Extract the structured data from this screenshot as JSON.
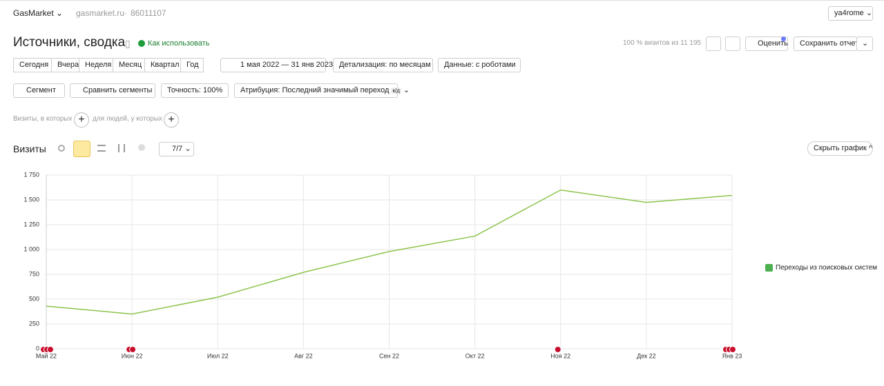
{
  "header": {
    "site": "GasMarket",
    "domain": "gasmarket.ru",
    "counter": "86011107",
    "user": "ya4rome"
  },
  "title": "Источники, сводка",
  "help": "Как использовать",
  "visits_info": "100 % визитов из 11 195",
  "rate": "Оценить",
  "save": "Сохранить отчет",
  "periods": [
    "Сегодня",
    "Вчера",
    "Неделя",
    "Месяц",
    "Квартал",
    "Год"
  ],
  "date_range": "1 мая 2022 — 31 янв 2023",
  "detail": "Детализация: по месяцам",
  "data_mode": "Данные: с роботами",
  "segment": "Сегмент",
  "compare": "Сравнить сегменты",
  "accuracy": "Точность: 100%",
  "attribution": "Атрибуция: Последний значимый переход",
  "attribution_badge": "к/д",
  "filter_visits": "Визиты, в которых",
  "filter_people": "для людей, у которых",
  "metric": "Визиты",
  "annotations_count": "7/7",
  "hide_chart": "Скрыть график",
  "chart_data": {
    "type": "line",
    "categories": [
      "Май 22",
      "Июн 22",
      "Июл 22",
      "Авг 22",
      "Сен 22",
      "Окт 22",
      "Ноя 22",
      "Дек 22",
      "Янв 23"
    ],
    "series": [
      {
        "name": "Переходы из поисковых систем",
        "color": "#8bc34a",
        "values": [
          430,
          350,
          520,
          770,
          980,
          1135,
          1600,
          1475,
          1545
        ]
      }
    ],
    "ylim": [
      0,
      1750
    ],
    "yticks": [
      0,
      250,
      500,
      750,
      {
        "value": 1000,
        "label": "1 000"
      },
      {
        "value": 1250,
        "label": "1 250"
      },
      {
        "value": 1500,
        "label": "1 500"
      },
      {
        "value": 1750,
        "label": "1 750"
      }
    ],
    "grid": true,
    "legend": "right"
  }
}
